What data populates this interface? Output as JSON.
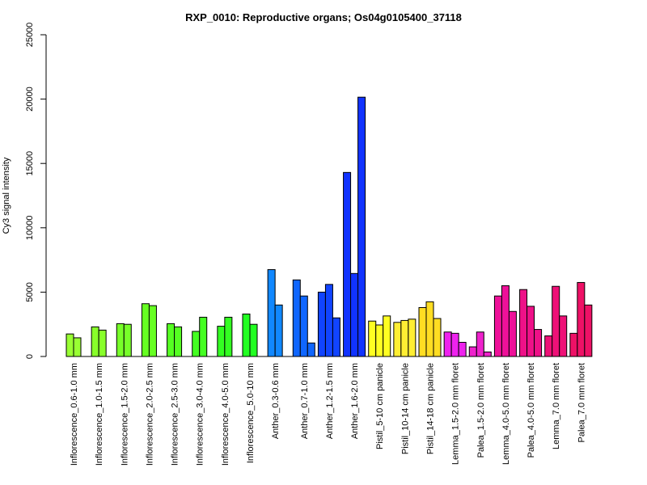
{
  "chart_data": {
    "type": "bar",
    "title": "RXP_0010: Reproductive organs; Os04g0105400_37118",
    "xlabel": "",
    "ylabel": "Cy3 signal intensity",
    "ylim": [
      0,
      25000
    ],
    "yticks": [
      "0",
      "5000",
      "10000",
      "15000",
      "20000",
      "25000"
    ],
    "grid": false,
    "legend": "none",
    "groups": [
      {
        "label": "Inflorescence_0.6-1.0 mm",
        "color": "#99ff33",
        "values": [
          1750,
          1450
        ]
      },
      {
        "label": "Inflorescence_1.0-1.5 mm",
        "color": "#88ff2a",
        "values": [
          2300,
          2050
        ]
      },
      {
        "label": "Inflorescence_1.5-2.0 mm",
        "color": "#77ff29",
        "values": [
          2550,
          2500
        ]
      },
      {
        "label": "Inflorescence_2.0-2.5 mm",
        "color": "#66ff22",
        "values": [
          4100,
          3950
        ]
      },
      {
        "label": "Inflorescence_2.5-3.0 mm",
        "color": "#55ff22",
        "values": [
          2550,
          2300
        ]
      },
      {
        "label": "Inflorescence_3.0-4.0 mm",
        "color": "#44ff22",
        "values": [
          1950,
          3050
        ]
      },
      {
        "label": "Inflorescence_4.0-5.0 mm",
        "color": "#33ff22",
        "values": [
          2350,
          3050
        ]
      },
      {
        "label": "Inflorescence_5.0-10 mm",
        "color": "#22ff22",
        "values": [
          3300,
          2500
        ]
      },
      {
        "label": "Anther_0.3-0.6 mm",
        "color": "#1188ff",
        "values": [
          6750,
          4000
        ]
      },
      {
        "label": "Anther_0.7-1.0 mm",
        "color": "#0f66ff",
        "values": [
          5950,
          4700,
          1050
        ]
      },
      {
        "label": "Anther_1.2-1.5 mm",
        "color": "#1144ff",
        "values": [
          5000,
          5600,
          3000
        ]
      },
      {
        "label": "Anther_1.6-2.0 mm",
        "color": "#1133ff",
        "values": [
          14300,
          6450,
          20150
        ]
      },
      {
        "label": "Pistil_5-10 cm panicle",
        "color": "#ffff22",
        "values": [
          2750,
          2450,
          3150
        ]
      },
      {
        "label": "Pistil_10-14 cm panicle",
        "color": "#ffee33",
        "values": [
          2650,
          2800,
          2900
        ]
      },
      {
        "label": "Pistil_14-18 cm panicle",
        "color": "#ffdd22",
        "values": [
          3800,
          4250,
          2950
        ]
      },
      {
        "label": "Lemma_1.5-2.0 mm floret",
        "color": "#ee22ee",
        "values": [
          1900,
          1800,
          1100
        ]
      },
      {
        "label": "Palea_1.5-2.0 mm floret",
        "color": "#ee22cc",
        "values": [
          750,
          1900,
          350
        ]
      },
      {
        "label": "Lemma_4.0-5.0 mm floret",
        "color": "#ee1199",
        "values": [
          4700,
          5500,
          3500
        ]
      },
      {
        "label": "Palea_4.0-5.0 mm floret",
        "color": "#ee1188",
        "values": [
          5200,
          3900,
          2100
        ]
      },
      {
        "label": "Lemma_7.0 mm floret",
        "color": "#ee1177",
        "values": [
          1600,
          5450,
          3150
        ]
      },
      {
        "label": "Palea_7.0 mm floret",
        "color": "#ee1166",
        "values": [
          1800,
          5750,
          4000
        ]
      }
    ]
  }
}
